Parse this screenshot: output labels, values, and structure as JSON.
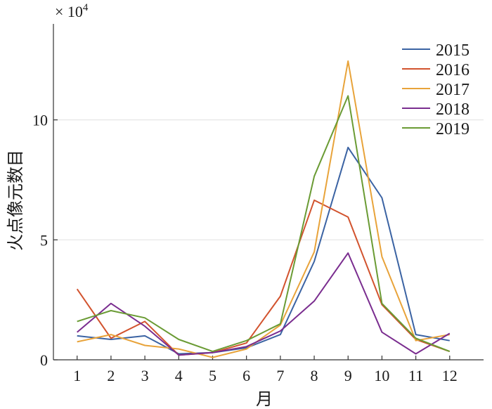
{
  "chart_data": {
    "type": "line",
    "xlabel": "月",
    "ylabel": "火点像元数目",
    "yscale_label": "× 10",
    "yscale_exp": "4",
    "x": [
      1,
      2,
      3,
      4,
      5,
      6,
      7,
      8,
      9,
      10,
      11,
      12
    ],
    "xtick_labels": [
      "1",
      "2",
      "3",
      "4",
      "5",
      "6",
      "7",
      "8",
      "9",
      "10",
      "11",
      "12"
    ],
    "xlim": [
      0.3,
      13.0
    ],
    "ylim": [
      0,
      14
    ],
    "yticks": [
      0,
      5,
      10
    ],
    "ytick_labels": [
      "0",
      "5",
      "10"
    ],
    "grid": "horizontal",
    "legend_position": "top-right",
    "series": [
      {
        "name": "2015",
        "color": "#3b63a3",
        "values": [
          1.0,
          0.85,
          1.0,
          0.25,
          0.3,
          0.5,
          1.05,
          4.1,
          8.85,
          6.75,
          1.05,
          0.8
        ]
      },
      {
        "name": "2016",
        "color": "#d2532e",
        "values": [
          2.95,
          0.9,
          1.6,
          0.2,
          0.3,
          0.7,
          2.65,
          6.65,
          5.95,
          2.3,
          0.85,
          0.35
        ]
      },
      {
        "name": "2017",
        "color": "#e8a33a",
        "values": [
          0.75,
          1.05,
          0.6,
          0.45,
          0.1,
          0.45,
          1.45,
          4.5,
          12.45,
          4.3,
          0.8,
          1.05
        ]
      },
      {
        "name": "2018",
        "color": "#7a2d8f",
        "values": [
          1.15,
          2.35,
          1.4,
          0.2,
          0.3,
          0.55,
          1.2,
          2.45,
          4.45,
          1.15,
          0.25,
          1.1
        ]
      },
      {
        "name": "2019",
        "color": "#6a9b34",
        "values": [
          1.6,
          2.05,
          1.75,
          0.85,
          0.35,
          0.8,
          1.5,
          7.65,
          11.0,
          2.35,
          0.9,
          0.35
        ]
      }
    ]
  }
}
